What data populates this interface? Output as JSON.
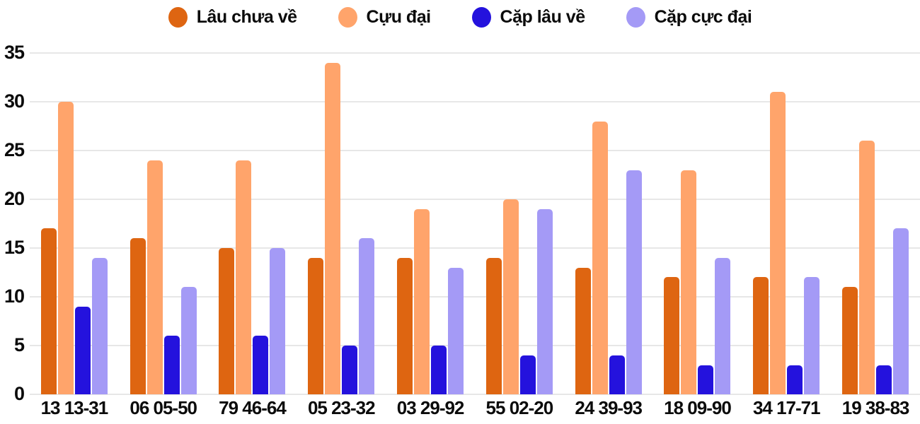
{
  "colors": {
    "background": "#ffffff",
    "text": "#0b0b0b",
    "grid": "#e7e7e7"
  },
  "chart_data": {
    "type": "bar",
    "title": "",
    "xlabel": "",
    "ylabel": "",
    "legend_position": "top",
    "grid": true,
    "ylim": [
      0,
      35
    ],
    "yticks": [
      0,
      5,
      10,
      15,
      20,
      25,
      30,
      35
    ],
    "categories": [
      "13 13-31",
      "06 05-50",
      "79 46-64",
      "05 23-32",
      "03 29-92",
      "55 02-20",
      "24 39-93",
      "18 09-90",
      "34 17-71",
      "19 38-83"
    ],
    "series": [
      {
        "name": "Lâu chưa về",
        "color": "#de6511",
        "values": [
          17,
          16,
          15,
          14,
          14,
          14,
          13,
          12,
          12,
          11
        ]
      },
      {
        "name": "Cựu đại",
        "color": "#ffa46b",
        "values": [
          30,
          24,
          24,
          34,
          19,
          20,
          28,
          23,
          31,
          26
        ]
      },
      {
        "name": "Cặp lâu về",
        "color": "#2412dd",
        "values": [
          9,
          6,
          6,
          5,
          5,
          4,
          4,
          3,
          3,
          3
        ]
      },
      {
        "name": "Cặp cực đại",
        "color": "#a49af6",
        "values": [
          14,
          11,
          15,
          16,
          13,
          19,
          23,
          14,
          12,
          17
        ]
      }
    ]
  }
}
